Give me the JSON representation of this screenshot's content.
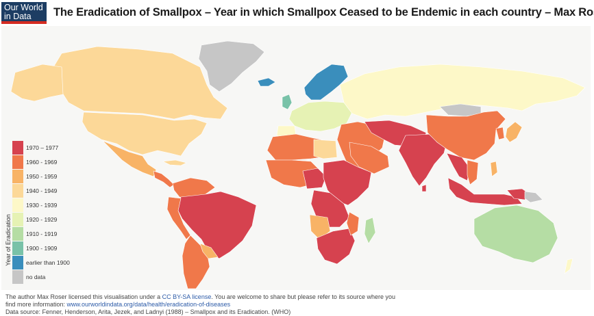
{
  "header": {
    "logo_line1": "Our World",
    "logo_line2": "in Data",
    "title": "The Eradication of Smallpox – Year in which Smallpox Ceased to be Endemic in each country – Max Roser"
  },
  "legend": {
    "axis_label": "Year of Eradication",
    "items": [
      {
        "label": "1970 – 1977",
        "color": "#d6424f"
      },
      {
        "label": "1960 - 1969",
        "color": "#f0784a"
      },
      {
        "label": "1950 - 1959",
        "color": "#f8b366"
      },
      {
        "label": "1940 - 1949",
        "color": "#fcd898"
      },
      {
        "label": "1930 - 1939",
        "color": "#fdf8c8"
      },
      {
        "label": "1920 - 1929",
        "color": "#e6f2b4"
      },
      {
        "label": "1910 - 1919",
        "color": "#b5dda4"
      },
      {
        "label": "1900 - 1909",
        "color": "#79c2a8"
      },
      {
        "label": "earlier than 1900",
        "color": "#3a8ebc"
      },
      {
        "label": "no data",
        "color": "#c6c6c6"
      }
    ]
  },
  "footer": {
    "line1_pre": "The author Max Roser licensed this visualisation under a ",
    "license_link": "CC BY-SA license",
    "line1_post": ". You are welcome to share but please refer to its source where you",
    "line2_pre": "find more information: ",
    "source_link": "www.ourworldindata.org/data/health/eradication-of-diseases",
    "line3": "Data source: Fenner, Henderson, Arita, Jezek, and Ladnyi (1988) – Smallpox and its Eradication. (WHO)"
  }
}
